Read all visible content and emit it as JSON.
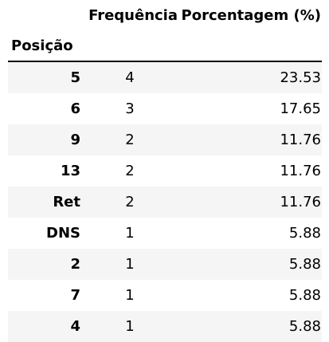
{
  "table": {
    "header": {
      "index_name": "Posição",
      "columns": [
        "Frequência",
        "Porcentagem (%)"
      ]
    },
    "rows": [
      {
        "posicao": "5",
        "frequencia": "4",
        "porcentagem": "23.53"
      },
      {
        "posicao": "6",
        "frequencia": "3",
        "porcentagem": "17.65"
      },
      {
        "posicao": "9",
        "frequencia": "2",
        "porcentagem": "11.76"
      },
      {
        "posicao": "13",
        "frequencia": "2",
        "porcentagem": "11.76"
      },
      {
        "posicao": "Ret",
        "frequencia": "2",
        "porcentagem": "11.76"
      },
      {
        "posicao": "DNS",
        "frequencia": "1",
        "porcentagem": "5.88"
      },
      {
        "posicao": "2",
        "frequencia": "1",
        "porcentagem": "5.88"
      },
      {
        "posicao": "7",
        "frequencia": "1",
        "porcentagem": "5.88"
      },
      {
        "posicao": "4",
        "frequencia": "1",
        "porcentagem": "5.88"
      }
    ]
  }
}
